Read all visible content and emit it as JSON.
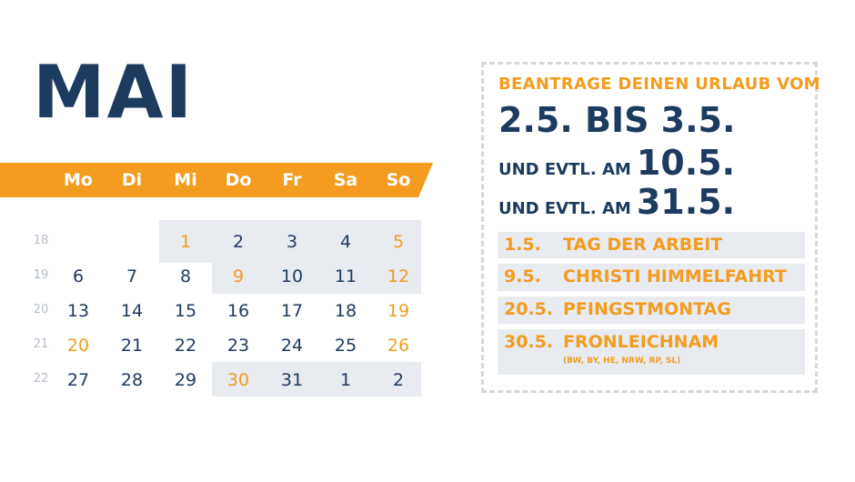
{
  "month": "MAI",
  "weekdays": [
    "Mo",
    "Di",
    "Mi",
    "Do",
    "Fr",
    "Sa",
    "So"
  ],
  "weeks": [
    {
      "week": "18",
      "days": [
        "",
        "",
        "1",
        "2",
        "3",
        "4",
        "5"
      ]
    },
    {
      "week": "19",
      "days": [
        "6",
        "7",
        "8",
        "9",
        "10",
        "11",
        "12"
      ]
    },
    {
      "week": "20",
      "days": [
        "13",
        "14",
        "15",
        "16",
        "17",
        "18",
        "19"
      ]
    },
    {
      "week": "21",
      "days": [
        "20",
        "21",
        "22",
        "23",
        "24",
        "25",
        "26"
      ]
    },
    {
      "week": "22",
      "days": [
        "27",
        "28",
        "29",
        "30",
        "31",
        "1",
        "2"
      ]
    }
  ],
  "panel": {
    "title": "BEANTRAGE DEINEN URLAUB VOM",
    "range": "2.5. BIS 3.5.",
    "option_label": "UND EVTL. AM",
    "options": [
      "10.5.",
      "31.5."
    ]
  },
  "holidays": [
    {
      "date": "1.5.",
      "name": "TAG DER ARBEIT",
      "note": ""
    },
    {
      "date": "9.5.",
      "name": "CHRISTI HIMMELFAHRT",
      "note": ""
    },
    {
      "date": "20.5.",
      "name": "PFINGSTMONTAG",
      "note": ""
    },
    {
      "date": "30.5.",
      "name": "FRONLEICHNAM",
      "note": "(BW, BY, HE, NRW, RP, SL)"
    }
  ],
  "colors": {
    "navy": "#1d3a5f",
    "orange": "#f39c1f",
    "highlight": "#e8ebf0"
  }
}
